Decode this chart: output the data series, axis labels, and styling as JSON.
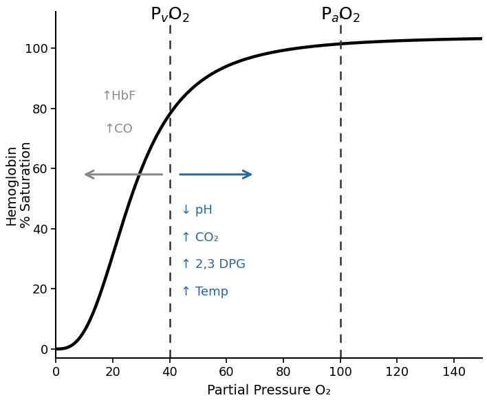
{
  "title": "",
  "xlabel": "Partial Pressure O₂",
  "ylabel": "Hemoglobin\n% Saturation",
  "xlim": [
    0,
    150
  ],
  "ylim": [
    -3,
    112
  ],
  "xticks": [
    0,
    20,
    40,
    60,
    80,
    100,
    120,
    140
  ],
  "yticks": [
    0,
    20,
    40,
    60,
    80,
    100
  ],
  "pv_x": 40,
  "pa_x": 100,
  "pv_label": "P$_{v}$O$_{2}$",
  "pa_label": "P$_{a}$O$_{2}$",
  "curve_color": "#000000",
  "dashed_color": "#333333",
  "gray_arrow_color": "#888888",
  "blue_color": "#2469A0",
  "left_arrow_label_lines": [
    "↑HbF",
    "↑CO"
  ],
  "right_label_lines": [
    "↓ pH",
    "↑ CO₂",
    "↑ 2,3 DPG",
    "↑ Temp"
  ],
  "background_color": "#ffffff",
  "curve_lw": 3.2,
  "dashed_lw": 1.8,
  "label_fontsize": 14,
  "tick_fontsize": 13,
  "annotation_fontsize": 13,
  "header_fontsize": 18,
  "p50": 27,
  "hill_n": 2.8,
  "max_sat": 104
}
